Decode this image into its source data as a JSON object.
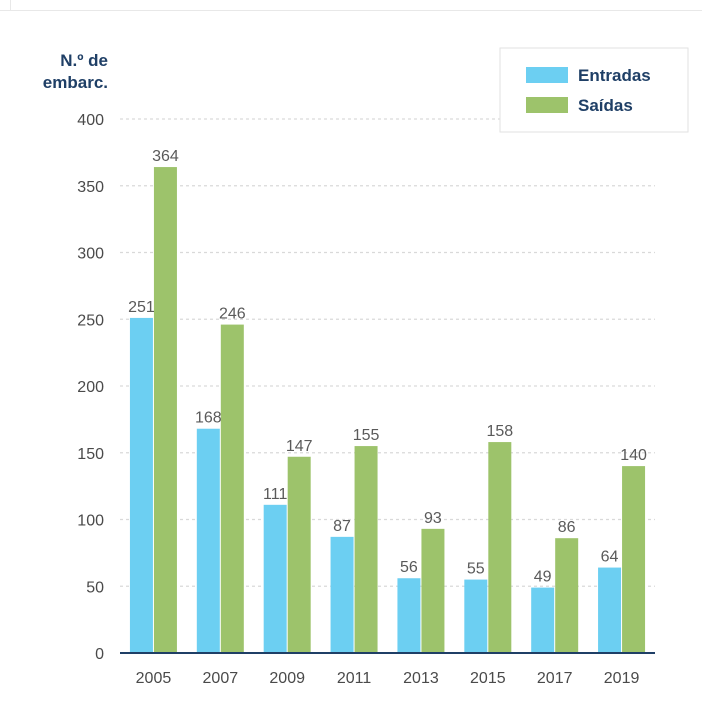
{
  "chart_data": {
    "type": "bar",
    "ylabel_lines": [
      "N.º de",
      "embarc."
    ],
    "categories": [
      "2005",
      "2007",
      "2009",
      "2011",
      "2013",
      "2015",
      "2017",
      "2019"
    ],
    "series": [
      {
        "name": "Entradas",
        "values": [
          251,
          168,
          111,
          87,
          56,
          55,
          49,
          64
        ],
        "color": "#6ccff2"
      },
      {
        "name": "Saídas",
        "values": [
          364,
          246,
          147,
          155,
          93,
          158,
          86,
          140
        ],
        "color": "#9dc36b"
      }
    ],
    "ylim": [
      0,
      400
    ],
    "yticks": [
      0,
      50,
      100,
      150,
      200,
      250,
      300,
      350,
      400
    ],
    "grid": true,
    "legend_position": "top-right",
    "colors": {
      "axis": "#1f3f66",
      "text": "#4a4a4a",
      "grid": "#d9d9d9"
    }
  }
}
